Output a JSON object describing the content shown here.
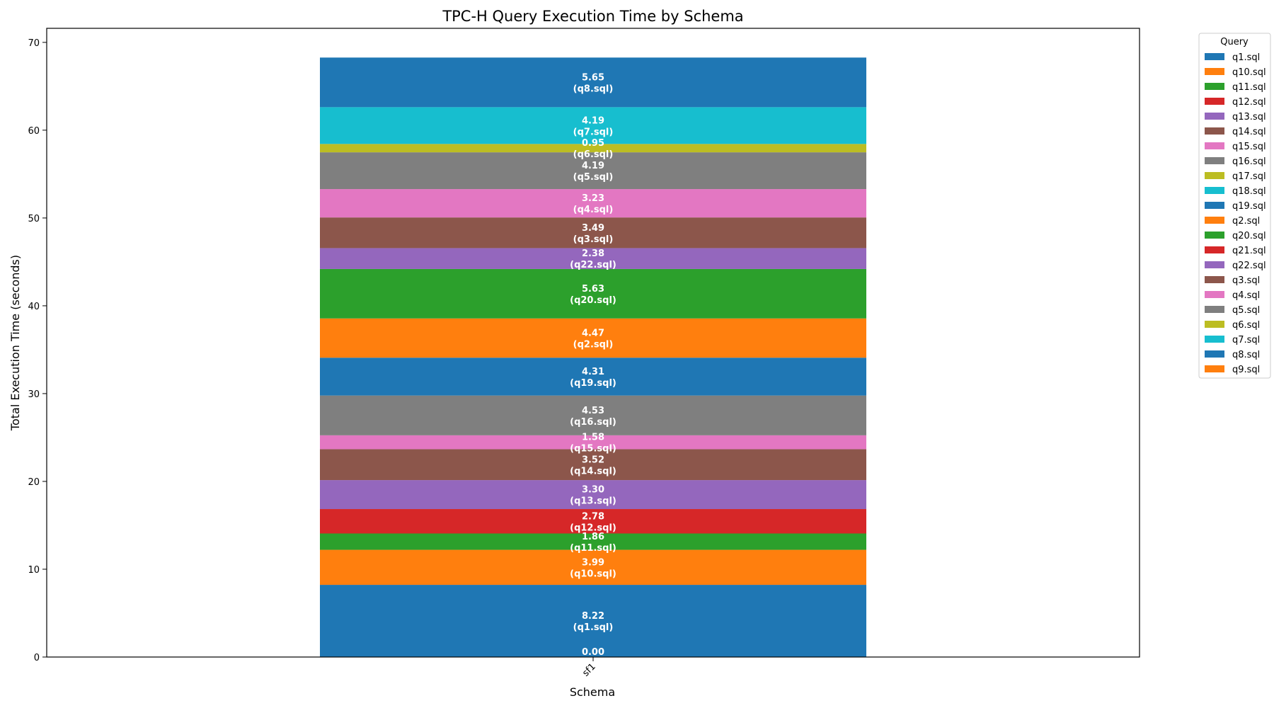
{
  "chart_data": {
    "type": "bar",
    "stacked": true,
    "title": "TPC-H Query Execution Time by Schema",
    "xlabel": "Schema",
    "ylabel": "Total Execution Time (seconds)",
    "categories": [
      "sf1"
    ],
    "ylim": [
      0,
      71.6
    ],
    "yticks": [
      0,
      10,
      20,
      30,
      40,
      50,
      60,
      70
    ],
    "grid": false,
    "legend_title": "Query",
    "legend_position": "outside-top-right",
    "series": [
      {
        "name": "q1.sql",
        "values": [
          8.22
        ],
        "color": "#1f77b4"
      },
      {
        "name": "q10.sql",
        "values": [
          3.99
        ],
        "color": "#ff7f0e"
      },
      {
        "name": "q11.sql",
        "values": [
          1.86
        ],
        "color": "#2ca02c"
      },
      {
        "name": "q12.sql",
        "values": [
          2.78
        ],
        "color": "#d62728"
      },
      {
        "name": "q13.sql",
        "values": [
          3.3
        ],
        "color": "#9467bd"
      },
      {
        "name": "q14.sql",
        "values": [
          3.52
        ],
        "color": "#8c564b"
      },
      {
        "name": "q15.sql",
        "values": [
          1.58
        ],
        "color": "#e377c2"
      },
      {
        "name": "q16.sql",
        "values": [
          4.53
        ],
        "color": "#7f7f7f"
      },
      {
        "name": "q17.sql",
        "values": [
          0.0
        ],
        "color": "#bcbd22"
      },
      {
        "name": "q18.sql",
        "values": [
          0.0
        ],
        "color": "#17becf"
      },
      {
        "name": "q19.sql",
        "values": [
          4.31
        ],
        "color": "#1f77b4"
      },
      {
        "name": "q2.sql",
        "values": [
          4.47
        ],
        "color": "#ff7f0e"
      },
      {
        "name": "q20.sql",
        "values": [
          5.63
        ],
        "color": "#2ca02c"
      },
      {
        "name": "q21.sql",
        "values": [
          0.0
        ],
        "color": "#d62728"
      },
      {
        "name": "q22.sql",
        "values": [
          2.38
        ],
        "color": "#9467bd"
      },
      {
        "name": "q3.sql",
        "values": [
          3.49
        ],
        "color": "#8c564b"
      },
      {
        "name": "q4.sql",
        "values": [
          3.23
        ],
        "color": "#e377c2"
      },
      {
        "name": "q5.sql",
        "values": [
          4.19
        ],
        "color": "#7f7f7f"
      },
      {
        "name": "q6.sql",
        "values": [
          0.95
        ],
        "color": "#bcbd22"
      },
      {
        "name": "q7.sql",
        "values": [
          4.19
        ],
        "color": "#17becf"
      },
      {
        "name": "q8.sql",
        "values": [
          5.65
        ],
        "color": "#1f77b4"
      },
      {
        "name": "q9.sql",
        "values": [
          0.0
        ],
        "color": "#ff7f0e"
      }
    ],
    "data_labels": [
      {
        "value": "0.00",
        "series": "",
        "at": 0
      },
      {
        "value": "8.22",
        "series": "(q1.sql)"
      },
      {
        "value": "3.99",
        "series": "(q10.sql)"
      },
      {
        "value": "1.86",
        "series": "(q11.sql)"
      },
      {
        "value": "2.78",
        "series": "(q12.sql)"
      },
      {
        "value": "3.30",
        "series": "(q13.sql)"
      },
      {
        "value": "3.52",
        "series": "(q14.sql)"
      },
      {
        "value": "1.58",
        "series": "(q15.sql)"
      },
      {
        "value": "4.53",
        "series": "(q16.sql)"
      },
      {
        "value": "4.31",
        "series": "(q19.sql)"
      },
      {
        "value": "4.47",
        "series": "(q2.sql)"
      },
      {
        "value": "5.63",
        "series": "(q20.sql)"
      },
      {
        "value": "2.38",
        "series": "(q22.sql)"
      },
      {
        "value": "3.49",
        "series": "(q3.sql)"
      },
      {
        "value": "3.23",
        "series": "(q4.sql)"
      },
      {
        "value": "4.19",
        "series": "(q5.sql)"
      },
      {
        "value": "0.95",
        "series": "(q6.sql)"
      },
      {
        "value": "4.19",
        "series": "(q7.sql)"
      },
      {
        "value": "5.65",
        "series": "(q8.sql)"
      }
    ]
  }
}
